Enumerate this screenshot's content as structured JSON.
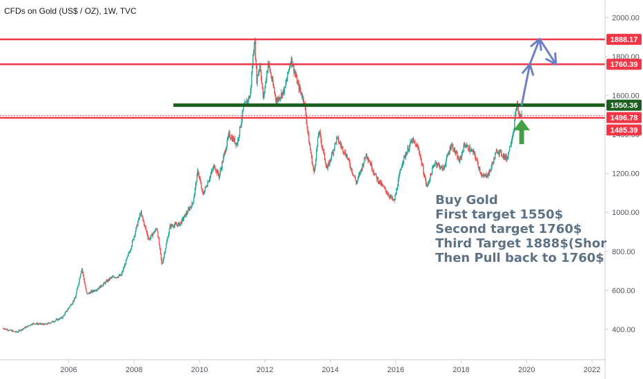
{
  "chart_data": {
    "type": "candlestick",
    "title": "CFDs on Gold (US$ / OZ), 1W, TVC",
    "xlabel": "",
    "ylabel": "",
    "x_ticks": [
      "2006",
      "2008",
      "2010",
      "2012",
      "2014",
      "2016",
      "2018",
      "2020",
      "2022"
    ],
    "x_range": [
      2003.9,
      2022.4
    ],
    "y_ticks": [
      400,
      600,
      800,
      1000,
      1200,
      1400,
      1600,
      1800,
      2000
    ],
    "y_tick_labels": [
      "400.00",
      "600.00",
      "800.00",
      "1000.00",
      "1200.00",
      "1400.00",
      "1600.00",
      "1800.00",
      "2000.00"
    ],
    "ylim": [
      244,
      2090
    ],
    "grid": false,
    "colors": {
      "up": "#26a69a",
      "down": "#ef5350",
      "resistance": "#f23645",
      "support": "#1b5e20",
      "arrow_up": "#43a047",
      "projection": "#6b7fc7"
    },
    "price_path": [
      [
        2004.0,
        405
      ],
      [
        2004.4,
        385
      ],
      [
        2004.9,
        430
      ],
      [
        2005.3,
        425
      ],
      [
        2005.8,
        460
      ],
      [
        2006.2,
        560
      ],
      [
        2006.4,
        715
      ],
      [
        2006.55,
        580
      ],
      [
        2006.9,
        610
      ],
      [
        2007.3,
        665
      ],
      [
        2007.6,
        675
      ],
      [
        2007.9,
        820
      ],
      [
        2008.2,
        1000
      ],
      [
        2008.45,
        860
      ],
      [
        2008.7,
        920
      ],
      [
        2008.85,
        730
      ],
      [
        2009.1,
        930
      ],
      [
        2009.4,
        940
      ],
      [
        2009.8,
        1050
      ],
      [
        2009.95,
        1215
      ],
      [
        2010.1,
        1090
      ],
      [
        2010.45,
        1240
      ],
      [
        2010.6,
        1185
      ],
      [
        2010.9,
        1400
      ],
      [
        2011.15,
        1350
      ],
      [
        2011.35,
        1540
      ],
      [
        2011.55,
        1600
      ],
      [
        2011.68,
        1900
      ],
      [
        2011.75,
        1680
      ],
      [
        2011.85,
        1760
      ],
      [
        2011.95,
        1580
      ],
      [
        2012.1,
        1770
      ],
      [
        2012.35,
        1570
      ],
      [
        2012.6,
        1630
      ],
      [
        2012.8,
        1790
      ],
      [
        2013.0,
        1660
      ],
      [
        2013.2,
        1570
      ],
      [
        2013.35,
        1360
      ],
      [
        2013.5,
        1200
      ],
      [
        2013.65,
        1420
      ],
      [
        2013.9,
        1220
      ],
      [
        2014.2,
        1380
      ],
      [
        2014.5,
        1290
      ],
      [
        2014.8,
        1150
      ],
      [
        2015.1,
        1300
      ],
      [
        2015.4,
        1180
      ],
      [
        2015.7,
        1110
      ],
      [
        2015.95,
        1055
      ],
      [
        2016.2,
        1260
      ],
      [
        2016.5,
        1370
      ],
      [
        2016.7,
        1325
      ],
      [
        2016.95,
        1130
      ],
      [
        2017.2,
        1260
      ],
      [
        2017.45,
        1220
      ],
      [
        2017.7,
        1350
      ],
      [
        2017.95,
        1260
      ],
      [
        2018.1,
        1350
      ],
      [
        2018.4,
        1300
      ],
      [
        2018.65,
        1180
      ],
      [
        2018.85,
        1200
      ],
      [
        2019.1,
        1320
      ],
      [
        2019.4,
        1275
      ],
      [
        2019.6,
        1420
      ],
      [
        2019.7,
        1555
      ],
      [
        2019.78,
        1490
      ],
      [
        2019.85,
        1505
      ]
    ],
    "levels": [
      {
        "label": "1888.17",
        "value": 1888.17,
        "color": "#f23645",
        "from": 2003.9
      },
      {
        "label": "1760.39",
        "value": 1760.39,
        "color": "#f23645",
        "from": 2003.9
      },
      {
        "label": "1550.36",
        "value": 1550.36,
        "color": "#1b5e20",
        "from": 2009.2
      },
      {
        "label": "1496.78",
        "value": 1496.78,
        "color": "#f23645",
        "from": 2003.9
      },
      {
        "label": "1485.39",
        "value": 1485.39,
        "color": "#f23645",
        "from": 2003.9
      }
    ],
    "projection": [
      [
        2019.85,
        1550
      ],
      [
        2020.1,
        1760
      ],
      [
        2020.4,
        1890
      ],
      [
        2020.9,
        1760
      ]
    ],
    "arrow_up_at": [
      2019.85,
      1400
    ],
    "annotation": [
      "Buy Gold",
      "First target  1550$",
      "Second target 1760$",
      "Third Target 1888$(Shor",
      "Then Pull back  to 1760$"
    ]
  }
}
